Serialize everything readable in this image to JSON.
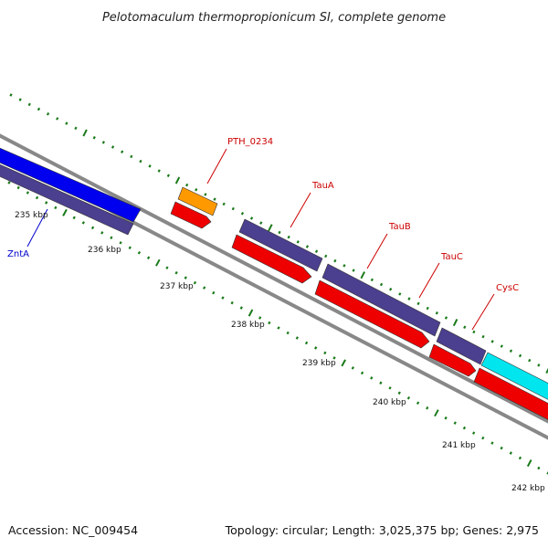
{
  "title": "Pelotomaculum thermopropionicum SI, complete genome",
  "footer": {
    "accession": "Accession: NC_009454",
    "summary": "Topology: circular; Length: 3,025,375 bp; Genes: 2,975"
  },
  "colors": {
    "backbone": "#888888",
    "tick": "#1a7a1a",
    "label_red": "#cc0000",
    "label_blue": "#0000cc",
    "purple": "#4b3f8f",
    "blue": "#0000ee",
    "orange": "#ff9900",
    "red": "#ee0000",
    "cyan": "#00e5ee"
  },
  "kbp_labels": [
    "235 kbp",
    "236 kbp",
    "237 kbp",
    "238 kbp",
    "239 kbp",
    "240 kbp",
    "241 kbp",
    "242 kbp"
  ],
  "genes": [
    {
      "name": "ZntA",
      "label_color": "blue"
    },
    {
      "name": "PTH_0234",
      "label_color": "red"
    },
    {
      "name": "TauA",
      "label_color": "red"
    },
    {
      "name": "TauB",
      "label_color": "red"
    },
    {
      "name": "TauC",
      "label_color": "red"
    },
    {
      "name": "CysC",
      "label_color": "red"
    }
  ]
}
